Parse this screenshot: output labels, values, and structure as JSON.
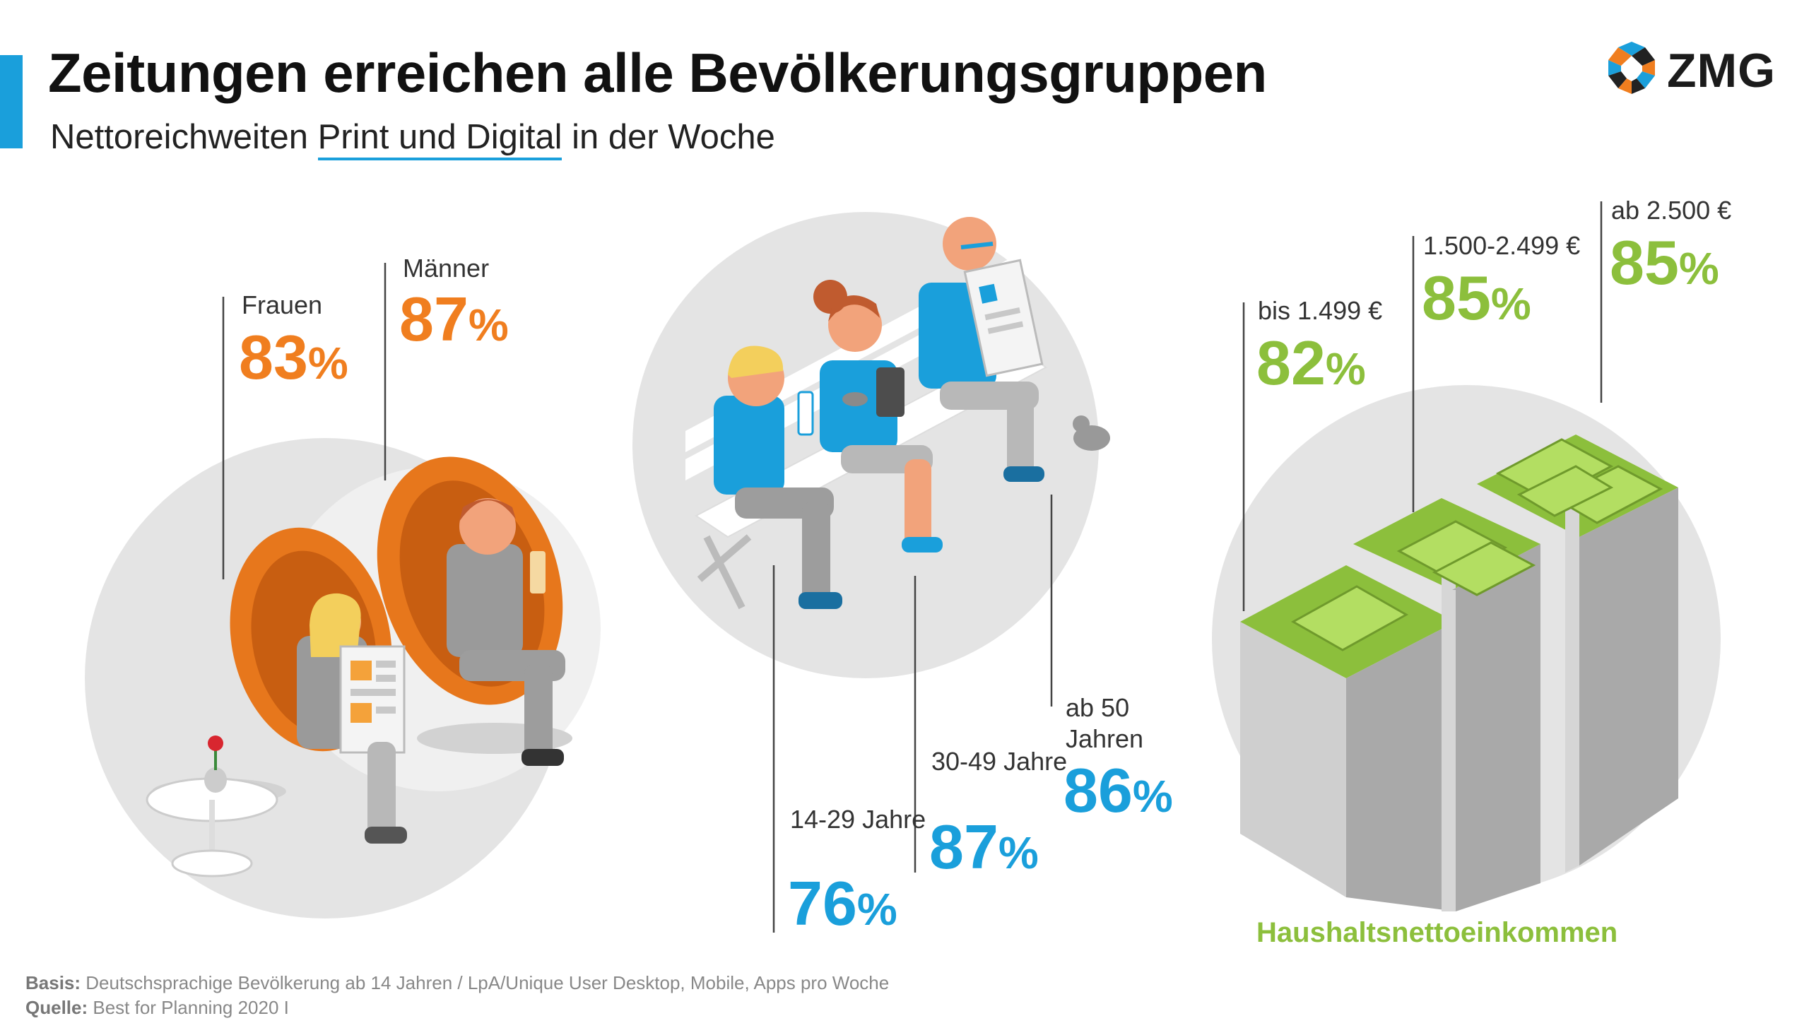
{
  "header": {
    "title": "Zeitungen erreichen alle Bevölkerungsgruppen",
    "subtitle_before": "Nettoreichweiten ",
    "subtitle_highlight": "Print und Digital",
    "subtitle_after": " in der Woche"
  },
  "logo": {
    "text": "ZMG"
  },
  "colors": {
    "accent": "#1a9fdb",
    "gender": "#f07e1f",
    "age": "#1a9fdb",
    "income": "#8cbf3c"
  },
  "chart_data": [
    {
      "type": "bar",
      "group": "gender",
      "categories": [
        "Frauen",
        "Männer"
      ],
      "values": [
        83,
        87
      ],
      "unit": "%"
    },
    {
      "type": "bar",
      "group": "age",
      "categories": [
        "14-29 Jahre",
        "30-49 Jahre",
        "ab 50 Jahren"
      ],
      "values": [
        76,
        87,
        86
      ],
      "unit": "%"
    },
    {
      "type": "bar",
      "group": "income",
      "title": "Haushaltsnettoeinkommen",
      "categories": [
        "bis 1.499 €",
        "1.500-2.499 €",
        "ab 2.500 €"
      ],
      "values": [
        82,
        85,
        85
      ],
      "unit": "%"
    }
  ],
  "labels": {
    "gender": [
      "Frauen",
      "Männer"
    ],
    "age": [
      "14-29 Jahre",
      "30-49 Jahre",
      "ab 50 Jahren"
    ],
    "income": [
      "bis 1.499 €",
      "1.500-2.499 €",
      "ab 2.500 €"
    ],
    "pct_sign": "%"
  },
  "income_caption": "Haushaltsnettoeinkommen",
  "footer": {
    "basis_label": "Basis:",
    "basis_text": " Deutschsprachige Bevölkerung ab 14 Jahren / LpA/Unique User Desktop, Mobile, Apps pro Woche",
    "source_label": "Quelle:",
    "source_text": " Best for Planning 2020 I"
  }
}
